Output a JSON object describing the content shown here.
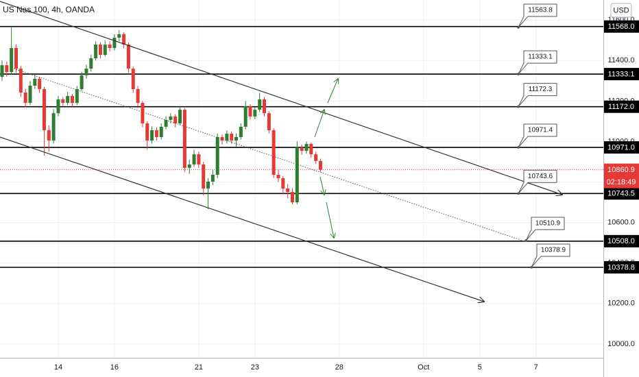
{
  "chart_data": {
    "type": "candlestick",
    "title": "US Nas 100, 4h, OANDA",
    "currency": "USD",
    "x": [
      0,
      1,
      2,
      3,
      4,
      5,
      6,
      7,
      8,
      9,
      10,
      11,
      12,
      13,
      14,
      15,
      16,
      17,
      18,
      19,
      20,
      21,
      22,
      23,
      24,
      25,
      26,
      27,
      28,
      29,
      30,
      31,
      32,
      33,
      34,
      35,
      36,
      37,
      38,
      39,
      40,
      41,
      42,
      43,
      44,
      45,
      46,
      47,
      48,
      49,
      50,
      51,
      52,
      53,
      54,
      55,
      56,
      57,
      58,
      59,
      60,
      61,
      62,
      63,
      64,
      65,
      66,
      67,
      68
    ],
    "open": [
      11320,
      11377,
      11343,
      11462,
      11360,
      11242,
      11191,
      11276,
      11310,
      11259,
      11056,
      11005,
      11140,
      11208,
      11191,
      11225,
      11191,
      11259,
      11327,
      11360,
      11411,
      11479,
      11428,
      11479,
      11462,
      11513,
      11530,
      11479,
      11360,
      11259,
      11191,
      11090,
      11005,
      11056,
      11022,
      11073,
      11107,
      11124,
      11090,
      11157,
      10870,
      10887,
      10937,
      10887,
      10768,
      10802,
      10836,
      11022,
      11005,
      11039,
      11005,
      11022,
      11073,
      11174,
      11124,
      11157,
      11208,
      11140,
      11056,
      10836,
      10819,
      10768,
      10751,
      10700,
      10971,
      10954,
      10988,
      10937,
      10904
    ],
    "high": [
      11400,
      11395,
      11563,
      11480,
      11375,
      11260,
      11300,
      11330,
      11320,
      11270,
      11080,
      11160,
      11225,
      11220,
      11245,
      11235,
      11275,
      11345,
      11380,
      11430,
      11495,
      11490,
      11500,
      11495,
      11530,
      11550,
      11540,
      11490,
      11370,
      11275,
      11200,
      11100,
      11075,
      11070,
      11090,
      11125,
      11140,
      11135,
      11175,
      11165,
      10910,
      10960,
      10950,
      10900,
      10820,
      10860,
      11040,
      11035,
      11055,
      11050,
      11040,
      11090,
      11200,
      11185,
      11170,
      11240,
      11220,
      11150,
      11065,
      10860,
      10830,
      10790,
      10770,
      11000,
      10985,
      11000,
      10995,
      10950,
      10915
    ],
    "low": [
      11300,
      11320,
      11330,
      11340,
      11220,
      11170,
      11180,
      11260,
      11240,
      10930,
      10950,
      10990,
      11125,
      11175,
      11180,
      11170,
      11180,
      11250,
      11310,
      11345,
      11400,
      11410,
      11420,
      11445,
      11450,
      11495,
      11460,
      11340,
      11240,
      11175,
      11070,
      10960,
      10990,
      11005,
      11010,
      11060,
      11090,
      11070,
      11080,
      10850,
      10840,
      10875,
      10870,
      10734,
      10667,
      10785,
      10820,
      10985,
      10990,
      10990,
      10975,
      11010,
      11060,
      11110,
      11110,
      11145,
      11125,
      11040,
      10820,
      10800,
      10740,
      10720,
      10690,
      10690,
      10935,
      10940,
      10920,
      10890,
      10850
    ],
    "close": [
      11377,
      11343,
      11462,
      11360,
      11242,
      11191,
      11276,
      11310,
      11259,
      11056,
      11005,
      11140,
      11208,
      11191,
      11225,
      11191,
      11259,
      11327,
      11360,
      11411,
      11479,
      11428,
      11479,
      11462,
      11513,
      11530,
      11479,
      11360,
      11259,
      11191,
      11090,
      11005,
      11056,
      11022,
      11073,
      11107,
      11124,
      11090,
      11157,
      10870,
      10887,
      10937,
      10887,
      10768,
      10802,
      10836,
      11022,
      11005,
      11039,
      11005,
      11022,
      11073,
      11174,
      11124,
      11157,
      11208,
      11140,
      11056,
      10836,
      10819,
      10768,
      10751,
      10700,
      10971,
      10954,
      10988,
      10937,
      10904,
      10860.9
    ],
    "up_color": "#2e7d32",
    "down_color": "#e53935",
    "xlim": [
      -0.44,
      128.4
    ],
    "xticks": [
      {
        "value": 12,
        "label": "14"
      },
      {
        "value": 24,
        "label": "16"
      },
      {
        "value": 42,
        "label": "21"
      },
      {
        "value": 54,
        "label": "23"
      },
      {
        "value": 72,
        "label": "28"
      },
      {
        "value": 90,
        "label": "Oct"
      },
      {
        "value": 102,
        "label": "5"
      },
      {
        "value": 114,
        "label": "7"
      }
    ],
    "ylim": [
      9932,
      11699
    ],
    "yticks": [
      {
        "value": 10000,
        "label": "10000.0"
      },
      {
        "value": 10200,
        "label": "10200.0"
      },
      {
        "value": 10400,
        "label": "10400.0"
      },
      {
        "value": 10600,
        "label": "10600.0"
      },
      {
        "value": 10800,
        "label": "10800.0"
      },
      {
        "value": 11000,
        "label": "11000.0"
      },
      {
        "value": 11200,
        "label": "11200.0"
      },
      {
        "value": 11400,
        "label": "11400.0"
      },
      {
        "value": 11600,
        "label": "11600.0"
      }
    ],
    "grid": true,
    "levels": [
      {
        "value": 11568,
        "label": "11568.0"
      },
      {
        "value": 11333.1,
        "label": "11333.1"
      },
      {
        "value": 11172,
        "label": "11172.0"
      },
      {
        "value": 10971,
        "label": "10971.0"
      },
      {
        "value": 10743.5,
        "label": "10743.5"
      },
      {
        "value": 10508,
        "label": "10508.0"
      },
      {
        "value": 10378.8,
        "label": "10378.8"
      }
    ],
    "callouts": [
      11563.8,
      11333.1,
      11172.3,
      10971.4,
      10743.6,
      10510.9,
      10378.9
    ],
    "last_price": 10860.9,
    "countdown": "02:18:49"
  }
}
